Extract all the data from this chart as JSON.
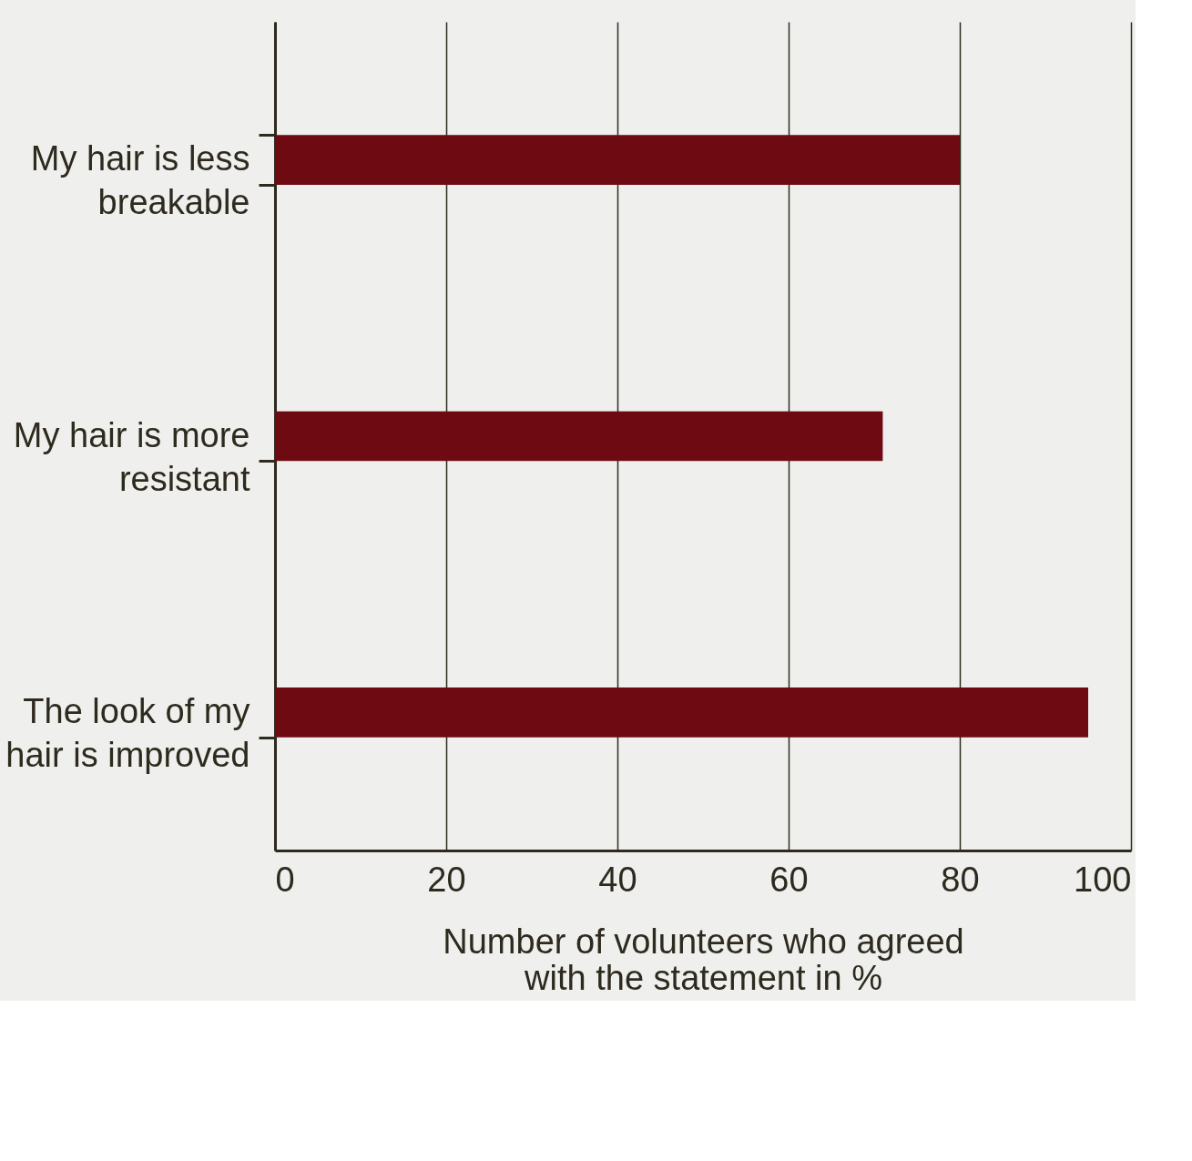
{
  "chart_data": {
    "type": "bar",
    "orientation": "horizontal",
    "categories": [
      "My hair is less breakable",
      "My hair is more resistant",
      "The look of my hair is improved"
    ],
    "series": [
      {
        "color": "#6e0b12",
        "values": [
          80,
          71,
          95
        ]
      }
    ],
    "xlabel": "Number of volunteers who agreed with the statement in %",
    "xlim": [
      0,
      100
    ],
    "xticks": [
      0,
      20,
      40,
      60,
      80,
      100
    ],
    "grid": "x"
  }
}
